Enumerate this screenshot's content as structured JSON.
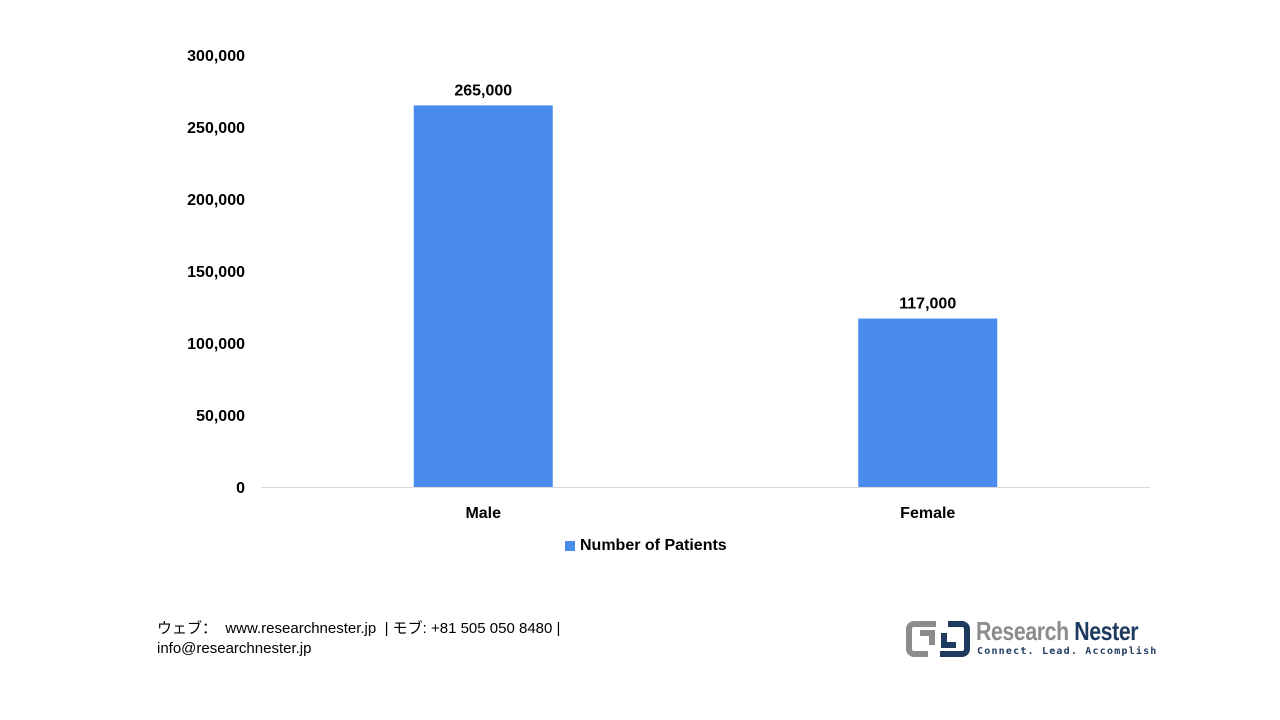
{
  "chart_data": {
    "type": "bar",
    "categories": [
      "Male",
      "Female"
    ],
    "series": [
      {
        "name": "Number of Patients",
        "values": [
          265000,
          117000
        ],
        "color": "#4a8ced"
      }
    ],
    "data_labels": [
      "265,000",
      "117,000"
    ],
    "y_ticks": [
      "0",
      "50,000",
      "100,000",
      "150,000",
      "200,000",
      "250,000",
      "300,000"
    ],
    "ylim": [
      0,
      300000
    ],
    "legend_position": "bottom",
    "grid": false,
    "title": "",
    "xlabel": "",
    "ylabel": ""
  },
  "legend": {
    "label": "Number of Patients"
  },
  "footer": {
    "contact_line1": "ウェブ：  www.researchnester.jp  | モブ: +81 505 050 8480 |",
    "contact_line2": "info@researchnester.jp"
  },
  "logo": {
    "name_part1": "Research",
    "name_part2": "Nester",
    "tagline": "Connect. Lead. Accomplish"
  },
  "colors": {
    "bar": "#4a8ced",
    "axis": "#d9d9d9",
    "logo_dark": "#1f3a5f",
    "logo_gray": "#8c8c8c"
  }
}
